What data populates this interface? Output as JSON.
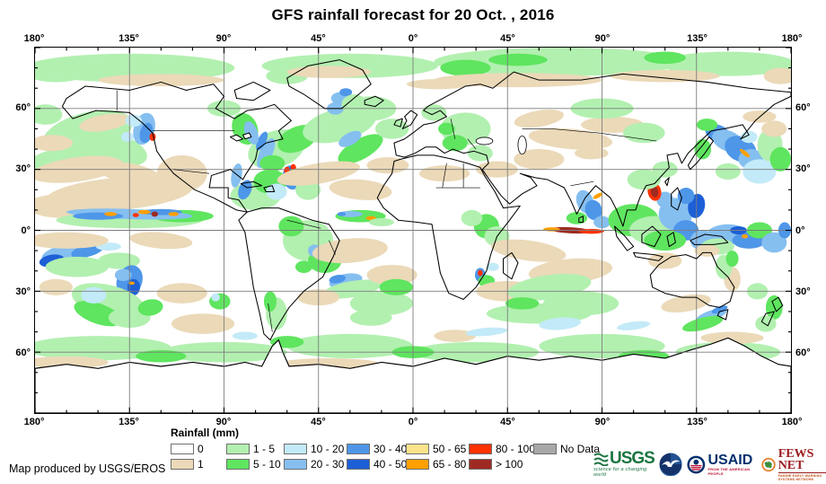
{
  "title": "GFS rainfall forecast for 20 Oct. , 2016",
  "credit": "Map produced by USGS/EROS",
  "axis": {
    "lon_labels": [
      "180°",
      "135°",
      "90°",
      "45°",
      "0°",
      "45°",
      "90°",
      "135°",
      "180°"
    ],
    "lat_labels": [
      "60°",
      "30°",
      "0°",
      "30°",
      "60°"
    ],
    "lon_major_step_deg": 45,
    "lat_major_step_deg": 30,
    "lon_minor_step_deg": 15,
    "lat_minor_step_deg": 10,
    "grid_color": "#7d7d7d",
    "tick_color": "#000000"
  },
  "legend": {
    "title": "Rainfall (mm)",
    "rows": [
      [
        {
          "color": "#FFFFFF",
          "label": "0"
        },
        {
          "color": "#B2F0B0",
          "label": "1 - 5"
        },
        {
          "color": "#C3EAF8",
          "label": "10 - 20"
        },
        {
          "color": "#4E96E8",
          "label": "30 - 40"
        },
        {
          "color": "#FAE38A",
          "label": "50 - 65"
        },
        {
          "color": "#FF3200",
          "label": "80 - 100"
        },
        {
          "color": "#A8A8A8",
          "label": "No Data"
        }
      ],
      [
        {
          "color": "#EBD9B8",
          "label": "1"
        },
        {
          "color": "#5FE55F",
          "label": "5 - 10"
        },
        {
          "color": "#85BFF0",
          "label": "20 - 30"
        },
        {
          "color": "#1D5FD6",
          "label": "40 - 50"
        },
        {
          "color": "#FFA000",
          "label": "65 - 80"
        },
        {
          "color": "#9E2A22",
          "label": "> 100"
        }
      ]
    ]
  },
  "palette": {
    "t": "#EBD9B8",
    "g1": "#B2F0B0",
    "g2": "#5FE55F",
    "c1": "#C3EAF8",
    "c2": "#85BFF0",
    "b1": "#4E96E8",
    "b2": "#1D5FD6",
    "y": "#FAE38A",
    "o": "#FFA000",
    "r": "#FF3200",
    "dr": "#9E2A22"
  },
  "rain_patches": [
    [
      45,
      10,
      50,
      7,
      0,
      "g1"
    ],
    [
      150,
      9,
      42,
      6,
      0,
      "g1"
    ],
    [
      250,
      7,
      60,
      7,
      0,
      "g1"
    ],
    [
      330,
      8,
      32,
      6,
      0,
      "g1"
    ],
    [
      10,
      12,
      15,
      5,
      0,
      "g1"
    ],
    [
      230,
      6,
      14,
      3,
      0,
      "g2"
    ],
    [
      300,
      5,
      10,
      3,
      0,
      "g2"
    ],
    [
      120,
      14,
      10,
      4,
      0,
      "g1"
    ],
    [
      205,
      10,
      12,
      4,
      0,
      "g2"
    ],
    [
      60,
      16,
      30,
      3,
      0,
      "t"
    ],
    [
      140,
      12,
      20,
      3,
      0,
      "t"
    ],
    [
      230,
      16,
      40,
      3.5,
      0,
      "t"
    ],
    [
      300,
      14,
      26,
      3,
      0,
      "t"
    ],
    [
      192,
      18,
      15,
      2.5,
      0,
      "t"
    ],
    [
      355,
      14,
      8,
      4,
      0,
      "t"
    ],
    [
      25,
      42,
      22,
      10,
      -15,
      "g1"
    ],
    [
      14,
      55,
      18,
      6,
      -10,
      "g1"
    ],
    [
      40,
      50,
      14,
      7,
      20,
      "g1"
    ],
    [
      5,
      33,
      8,
      5,
      0,
      "g1"
    ],
    [
      20,
      60,
      22,
      6,
      -8,
      "t"
    ],
    [
      45,
      62,
      15,
      5,
      10,
      "t"
    ],
    [
      8,
      47,
      10,
      4,
      0,
      "t"
    ],
    [
      33,
      37,
      12,
      4,
      -10,
      "t"
    ],
    [
      52,
      40,
      5,
      8,
      15,
      "c2"
    ],
    [
      53,
      42,
      3,
      5,
      15,
      "b1"
    ],
    [
      56,
      44,
      1.5,
      2,
      0,
      "r"
    ],
    [
      47,
      36,
      4,
      3,
      0,
      "c1"
    ],
    [
      44,
      44,
      3,
      2.5,
      0,
      "c1"
    ],
    [
      40,
      72,
      35,
      8,
      -5,
      "t"
    ],
    [
      14,
      78,
      18,
      6,
      0,
      "t"
    ],
    [
      70,
      62,
      12,
      9,
      0,
      "t"
    ],
    [
      57,
      70,
      10,
      5,
      15,
      "t"
    ],
    [
      45,
      85,
      35,
      4,
      0,
      "g1"
    ],
    [
      70,
      83,
      15,
      3,
      0,
      "g2"
    ],
    [
      45,
      82,
      30,
      2.5,
      2,
      "c2"
    ],
    [
      30,
      83,
      12,
      1.8,
      0,
      "b1"
    ],
    [
      60,
      81,
      10,
      1.5,
      0,
      "b1"
    ],
    [
      36,
      82,
      3,
      1,
      0,
      "o"
    ],
    [
      52,
      81,
      3,
      1,
      0,
      "o"
    ],
    [
      66,
      82,
      2.5,
      1,
      0,
      "o"
    ],
    [
      57,
      82,
      1.6,
      1.3,
      0,
      "dr"
    ],
    [
      48,
      82.5,
      1.5,
      1,
      0,
      "r"
    ],
    [
      105,
      73,
      12,
      7,
      0,
      "g1"
    ],
    [
      112,
      66,
      8,
      6,
      0,
      "g2"
    ],
    [
      100,
      70,
      3,
      5,
      20,
      "b1"
    ],
    [
      96,
      63,
      2.5,
      6,
      10,
      "c2"
    ],
    [
      122,
      64,
      4,
      6,
      -10,
      "b1"
    ],
    [
      123,
      61,
      2,
      3,
      -10,
      "b2"
    ],
    [
      123,
      59,
      1.3,
      1.6,
      0,
      "r"
    ],
    [
      115,
      71,
      5,
      4,
      0,
      "c1"
    ],
    [
      130,
      70,
      6,
      5,
      0,
      "g1"
    ],
    [
      115,
      50,
      14,
      9,
      -20,
      "g1"
    ],
    [
      125,
      45,
      10,
      6,
      -25,
      "g2"
    ],
    [
      110,
      52,
      3,
      8,
      25,
      "c2"
    ],
    [
      108,
      46,
      2,
      5,
      25,
      "b1"
    ],
    [
      120,
      60.5,
      1.4,
      1.8,
      0,
      "r"
    ],
    [
      113,
      57,
      6,
      4,
      0,
      "g2"
    ],
    [
      145,
      38,
      18,
      8,
      -15,
      "g1"
    ],
    [
      155,
      50,
      12,
      5,
      -30,
      "g2"
    ],
    [
      160,
      30,
      12,
      6,
      0,
      "g1"
    ],
    [
      150,
      45,
      6,
      3,
      -30,
      "c2"
    ],
    [
      143,
      30,
      4,
      3,
      0,
      "c2"
    ],
    [
      148,
      26,
      3,
      2,
      0,
      "b1"
    ],
    [
      170,
      40,
      8,
      5,
      0,
      "g1"
    ],
    [
      135,
      62,
      20,
      5,
      -10,
      "t"
    ],
    [
      155,
      70,
      15,
      5,
      5,
      "t"
    ],
    [
      168,
      58,
      10,
      4,
      0,
      "t"
    ],
    [
      155,
      83,
      12,
      3,
      0,
      "g2"
    ],
    [
      150,
      82,
      6,
      1.5,
      0,
      "c2"
    ],
    [
      160,
      84,
      2.5,
      1,
      0,
      "o"
    ],
    [
      146,
      82,
      2,
      1,
      0,
      "b1"
    ],
    [
      165,
      86,
      6,
      2,
      0,
      "g1"
    ],
    [
      205,
      40,
      12,
      8,
      0,
      "g1"
    ],
    [
      200,
      47,
      6,
      4,
      0,
      "g2"
    ],
    [
      212,
      52,
      6,
      4,
      0,
      "g1"
    ],
    [
      190,
      32,
      6,
      4,
      0,
      "g1"
    ],
    [
      196,
      40,
      4,
      3,
      0,
      "g2"
    ],
    [
      195,
      62,
      12,
      4,
      0,
      "t"
    ],
    [
      220,
      60,
      10,
      4,
      0,
      "t"
    ],
    [
      240,
      55,
      12,
      5,
      0,
      "t"
    ],
    [
      255,
      45,
      20,
      5,
      5,
      "t"
    ],
    [
      275,
      38,
      15,
      4,
      0,
      "t"
    ],
    [
      240,
      35,
      12,
      4,
      -10,
      "t"
    ],
    [
      270,
      30,
      15,
      5,
      0,
      "g1"
    ],
    [
      290,
      42,
      10,
      5,
      0,
      "g1"
    ],
    [
      265,
      52,
      8,
      3,
      0,
      "t"
    ],
    [
      215,
      88,
      6,
      6,
      0,
      "g2"
    ],
    [
      220,
      93,
      6,
      5,
      0,
      "g1"
    ],
    [
      208,
      84,
      5,
      4,
      0,
      "g1"
    ],
    [
      212,
      112,
      2.5,
      3.5,
      0,
      "b1"
    ],
    [
      212,
      111,
      1.2,
      1.5,
      0,
      "r"
    ],
    [
      215,
      115,
      4,
      3,
      0,
      "g2"
    ],
    [
      218,
      108,
      3,
      2,
      0,
      "c1"
    ],
    [
      235,
      100,
      18,
      5,
      8,
      "t"
    ],
    [
      255,
      110,
      20,
      6,
      -5,
      "t"
    ],
    [
      225,
      120,
      15,
      5,
      0,
      "t"
    ],
    [
      245,
      118,
      20,
      6,
      -8,
      "g1"
    ],
    [
      260,
      126,
      18,
      6,
      0,
      "g1"
    ],
    [
      240,
      131,
      25,
      5,
      0,
      "g1"
    ],
    [
      250,
      136,
      10,
      3,
      -5,
      "c1"
    ],
    [
      232,
      126,
      8,
      3,
      0,
      "g2"
    ],
    [
      262,
      76,
      4,
      6,
      -20,
      "c2"
    ],
    [
      266,
      80,
      4,
      5,
      -15,
      "b1"
    ],
    [
      258,
      84,
      5,
      3,
      0,
      "g2"
    ],
    [
      268,
      73,
      2.5,
      1,
      -30,
      "o"
    ],
    [
      255,
      90,
      10,
      1.5,
      3,
      "dr"
    ],
    [
      265,
      90.5,
      6,
      1.2,
      0,
      "r"
    ],
    [
      246,
      89.5,
      4,
      1,
      0,
      "o"
    ],
    [
      270,
      86,
      4,
      3,
      0,
      "c2"
    ],
    [
      285,
      85,
      12,
      8,
      0,
      "g2"
    ],
    [
      295,
      90,
      12,
      7,
      0,
      "g1"
    ],
    [
      305,
      82,
      8,
      8,
      0,
      "c2"
    ],
    [
      310,
      90,
      6,
      5,
      0,
      "b1"
    ],
    [
      300,
      95,
      10,
      5,
      0,
      "g2"
    ],
    [
      315,
      78,
      4,
      6,
      10,
      "b2"
    ],
    [
      318,
      95,
      6,
      5,
      0,
      "c2"
    ],
    [
      310,
      73,
      4,
      4,
      0,
      "b1"
    ],
    [
      300,
      75,
      4,
      4,
      0,
      "c2"
    ],
    [
      295,
      71,
      3.2,
      4.5,
      -10,
      "r"
    ],
    [
      295,
      71,
      1.8,
      2.8,
      -10,
      "dr"
    ],
    [
      290,
      65,
      8,
      5,
      0,
      "g1"
    ],
    [
      300,
      60,
      6,
      4,
      0,
      "g1"
    ],
    [
      325,
      42,
      6,
      4,
      20,
      "b1"
    ],
    [
      330,
      46,
      8,
      5,
      25,
      "c2"
    ],
    [
      336,
      50,
      8,
      6,
      30,
      "b1"
    ],
    [
      341,
      55,
      6,
      5,
      0,
      "c2"
    ],
    [
      338,
      52,
      3,
      1,
      40,
      "o"
    ],
    [
      320,
      38,
      5,
      3,
      0,
      "g2"
    ],
    [
      345,
      61,
      8,
      6,
      0,
      "c1"
    ],
    [
      350,
      48,
      6,
      8,
      0,
      "g1"
    ],
    [
      330,
      61,
      6,
      4,
      0,
      "g1"
    ],
    [
      318,
      50,
      4,
      5,
      0,
      "g2"
    ],
    [
      352,
      40,
      6,
      4,
      0,
      "t"
    ],
    [
      345,
      34,
      8,
      3,
      0,
      "t"
    ],
    [
      355,
      55,
      5,
      6,
      0,
      "g2"
    ],
    [
      340,
      44,
      4,
      3,
      0,
      "c1"
    ],
    [
      330,
      92,
      10,
      5,
      0,
      "c2"
    ],
    [
      340,
      95,
      8,
      4,
      0,
      "b1"
    ],
    [
      335,
      90,
      4,
      2,
      0,
      "b2"
    ],
    [
      345,
      90,
      6,
      4,
      0,
      "g2"
    ],
    [
      352,
      96,
      6,
      5,
      0,
      "c2"
    ],
    [
      338,
      93,
      1.5,
      1,
      0,
      "o"
    ],
    [
      325,
      98,
      8,
      4,
      0,
      "g1"
    ],
    [
      357,
      90,
      3,
      4,
      0,
      "b1"
    ],
    [
      300,
      105,
      8,
      4,
      0,
      "t"
    ],
    [
      320,
      100,
      6,
      3,
      0,
      "t"
    ],
    [
      310,
      126,
      12,
      4,
      -10,
      "t"
    ],
    [
      332,
      114,
      4,
      6,
      0,
      "t"
    ],
    [
      328,
      108,
      4,
      6,
      0,
      "g1"
    ],
    [
      332,
      104,
      3,
      4,
      0,
      "g2"
    ],
    [
      322,
      132,
      8,
      2.5,
      -20,
      "c2"
    ],
    [
      326,
      129,
      4,
      1.5,
      -20,
      "b1"
    ],
    [
      318,
      136,
      10,
      3,
      -15,
      "g2"
    ],
    [
      352,
      128,
      4,
      6,
      0,
      "g2"
    ],
    [
      348,
      136,
      5,
      4,
      0,
      "g1"
    ],
    [
      344,
      120,
      5,
      4,
      0,
      "g1"
    ],
    [
      15,
      102,
      12,
      5,
      -10,
      "c2"
    ],
    [
      8,
      105,
      6,
      3,
      -10,
      "b2"
    ],
    [
      25,
      100,
      8,
      3,
      -15,
      "b1"
    ],
    [
      35,
      98,
      6,
      2,
      0,
      "c1"
    ],
    [
      20,
      108,
      15,
      5,
      0,
      "g1"
    ],
    [
      40,
      105,
      10,
      4,
      0,
      "g1"
    ],
    [
      45,
      115,
      6,
      8,
      20,
      "b1"
    ],
    [
      47,
      118,
      3,
      4,
      0,
      "b2"
    ],
    [
      42,
      112,
      4,
      3,
      0,
      "c2"
    ],
    [
      46,
      116,
      1.5,
      0.8,
      0,
      "o"
    ],
    [
      35,
      125,
      18,
      8,
      15,
      "g1"
    ],
    [
      30,
      131,
      12,
      5,
      20,
      "g2"
    ],
    [
      45,
      133,
      10,
      5,
      0,
      "g1"
    ],
    [
      28,
      122,
      6,
      4,
      0,
      "c1"
    ],
    [
      55,
      128,
      6,
      4,
      -10,
      "g2"
    ],
    [
      15,
      95,
      20,
      4,
      0,
      "t"
    ],
    [
      60,
      95,
      15,
      4,
      5,
      "t"
    ],
    [
      70,
      121,
      12,
      5,
      0,
      "t"
    ],
    [
      10,
      118,
      8,
      4,
      0,
      "t"
    ],
    [
      80,
      136,
      15,
      5,
      0,
      "t"
    ],
    [
      88,
      125,
      5,
      4,
      0,
      "g2"
    ],
    [
      86,
      123,
      2,
      2,
      0,
      "c1"
    ],
    [
      130,
      95,
      12,
      10,
      0,
      "g1"
    ],
    [
      138,
      105,
      8,
      6,
      0,
      "g2"
    ],
    [
      122,
      88,
      6,
      5,
      0,
      "g2"
    ],
    [
      133,
      100,
      3,
      3,
      0,
      "c2"
    ],
    [
      128,
      108,
      4,
      3,
      0,
      "g2"
    ],
    [
      148,
      115,
      8,
      3.5,
      -12,
      "c2"
    ],
    [
      144,
      114,
      4,
      2,
      -12,
      "b1"
    ],
    [
      156,
      117,
      10,
      2.5,
      -8,
      "c1"
    ],
    [
      151,
      119,
      14,
      4,
      -10,
      "g1"
    ],
    [
      150,
      100,
      18,
      6,
      -5,
      "t"
    ],
    [
      170,
      112,
      12,
      5,
      0,
      "t"
    ],
    [
      135,
      123,
      10,
      4,
      0,
      "t"
    ],
    [
      165,
      126,
      15,
      6,
      0,
      "g1"
    ],
    [
      172,
      118,
      8,
      4,
      0,
      "g2"
    ],
    [
      160,
      133,
      10,
      4,
      0,
      "g1"
    ],
    [
      115,
      131,
      5,
      8,
      0,
      "g1"
    ],
    [
      112,
      125,
      3,
      5,
      0,
      "g2"
    ],
    [
      30,
      148,
      35,
      6,
      0,
      "g1"
    ],
    [
      90,
      150,
      30,
      5,
      0,
      "g1"
    ],
    [
      150,
      147,
      30,
      6,
      0,
      "g1"
    ],
    [
      210,
      150,
      30,
      5,
      0,
      "g1"
    ],
    [
      270,
      147,
      30,
      6,
      0,
      "g1"
    ],
    [
      330,
      150,
      25,
      5,
      0,
      "g1"
    ],
    [
      60,
      152,
      12,
      3,
      0,
      "g2"
    ],
    [
      180,
      150,
      10,
      3,
      0,
      "g2"
    ],
    [
      290,
      152,
      12,
      3,
      0,
      "g2"
    ],
    [
      120,
      145,
      8,
      3,
      0,
      "g2"
    ],
    [
      15,
      155,
      20,
      3,
      0,
      "t"
    ],
    [
      140,
      156,
      25,
      3,
      0,
      "t"
    ],
    [
      250,
      157,
      20,
      3,
      0,
      "t"
    ],
    [
      332,
      143,
      15,
      3,
      0,
      "t"
    ],
    [
      200,
      142,
      10,
      3,
      0,
      "t"
    ],
    [
      215,
      140,
      10,
      2,
      -5,
      "c1"
    ],
    [
      285,
      137,
      8,
      2,
      -8,
      "c1"
    ],
    [
      100,
      142,
      6,
      2,
      0,
      "c1"
    ],
    [
      90,
      30,
      8,
      4,
      0,
      "g1"
    ],
    [
      100,
      40,
      6,
      8,
      -20,
      "g2"
    ],
    [
      103,
      42,
      3,
      6,
      -20,
      "c2"
    ],
    [
      145,
      25,
      4,
      3,
      0,
      "c2"
    ],
    [
      148,
      22,
      3,
      2,
      0,
      "b1"
    ],
    [
      152,
      28,
      6,
      5,
      0,
      "g1"
    ]
  ],
  "logos": {
    "usgs": {
      "label": "USGS",
      "tagline": "science for a changing world"
    },
    "noaa": {
      "label": ""
    },
    "usaid": {
      "label": "USAID",
      "tagline": "FROM THE AMERICAN PEOPLE"
    },
    "fews": {
      "label": "FEWS NET",
      "tagline": "FAMINE EARLY WARNING SYSTEMS NETWORK"
    }
  }
}
